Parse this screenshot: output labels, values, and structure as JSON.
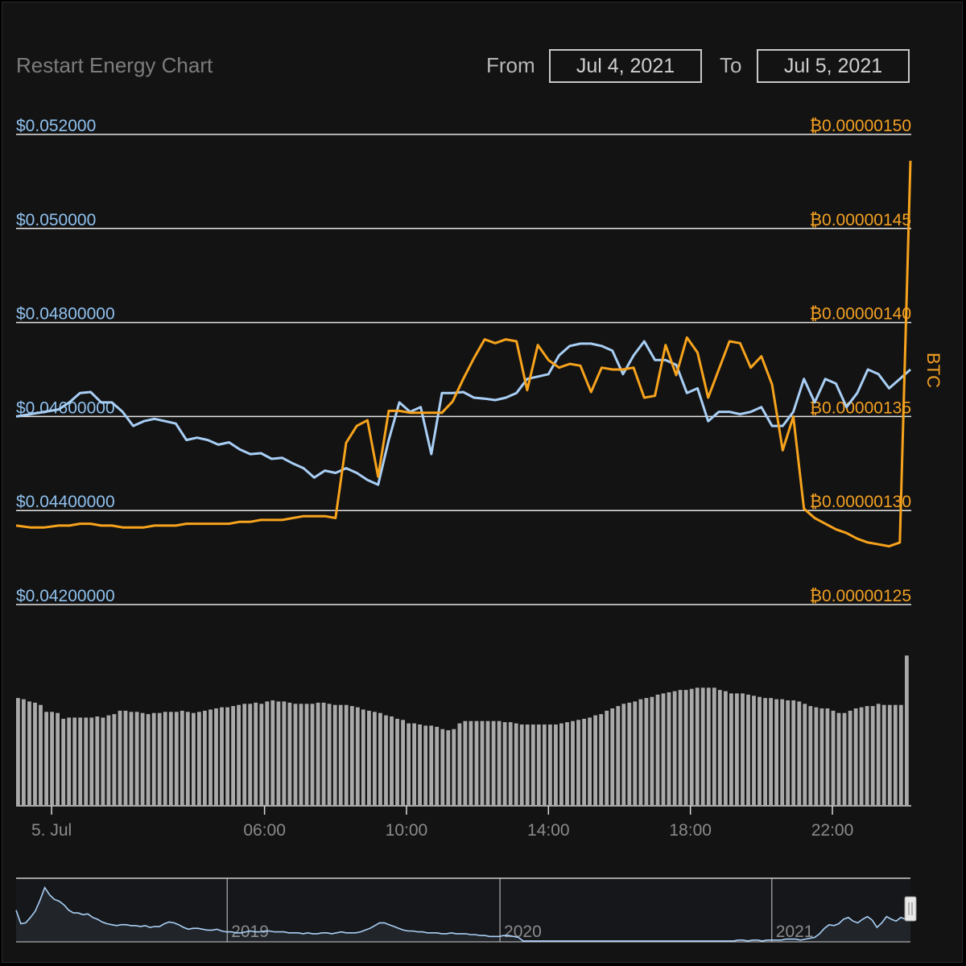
{
  "header": {
    "title": "Restart Energy Chart",
    "from_label": "From",
    "from_value": "Jul 4, 2021",
    "to_label": "To",
    "to_value": "Jul 5, 2021"
  },
  "colors": {
    "usd_line": "#a9cff5",
    "btc_line": "#f7a31c",
    "usd_axis_text": "#8fc1ee",
    "btc_axis_text": "#f3a022",
    "volume_bar": "#a9a9a9",
    "gridline": "#e6e6e6"
  },
  "chart_data": {
    "type": "line",
    "x_unit": "hours since 00:00, Jul 5",
    "usd_axis": {
      "ylim": [
        0.042,
        0.052
      ],
      "tick_values": [
        0.042,
        0.044,
        0.046,
        0.048,
        0.05,
        0.052
      ],
      "tick_labels": [
        "$0.04200000",
        "$0.04400000",
        "$0.04600000",
        "$0.04800000",
        "$0.050000",
        "$0.052000"
      ]
    },
    "btc_axis": {
      "title": "BTC",
      "ylim": [
        1.25e-06,
        1.5e-06
      ],
      "tick_values": [
        1.25e-06,
        1.3e-06,
        1.35e-06,
        1.4e-06,
        1.45e-06,
        1.5e-06
      ],
      "tick_labels": [
        "₿0.00000125",
        "₿0.00000130",
        "₿0.00000135",
        "₿0.00000140",
        "₿0.00000145",
        "₿0.00000150"
      ]
    },
    "x_ticks": [
      {
        "label": "5. Jul",
        "x": 0
      },
      {
        "label": "06:00",
        "x": 6
      },
      {
        "label": "10:00",
        "x": 10
      },
      {
        "label": "14:00",
        "x": 14
      },
      {
        "label": "18:00",
        "x": 18
      },
      {
        "label": "22:00",
        "x": 22
      }
    ],
    "x_range": [
      -1,
      24.2
    ],
    "series": [
      {
        "axis": "usd",
        "points": [
          [
            -1,
            0.046
          ],
          [
            -0.6,
            0.04605
          ],
          [
            -0.2,
            0.0461
          ],
          [
            0.2,
            0.04615
          ],
          [
            0.5,
            0.0463
          ],
          [
            0.8,
            0.0465
          ],
          [
            1.1,
            0.04652
          ],
          [
            1.4,
            0.0463
          ],
          [
            1.7,
            0.0463
          ],
          [
            2.0,
            0.0461
          ],
          [
            2.3,
            0.0458
          ],
          [
            2.6,
            0.0459
          ],
          [
            2.9,
            0.04595
          ],
          [
            3.2,
            0.0459
          ],
          [
            3.5,
            0.04585
          ],
          [
            3.8,
            0.0455
          ],
          [
            4.1,
            0.04555
          ],
          [
            4.4,
            0.0455
          ],
          [
            4.7,
            0.0454
          ],
          [
            5.0,
            0.04545
          ],
          [
            5.3,
            0.0453
          ],
          [
            5.6,
            0.0452
          ],
          [
            5.9,
            0.04522
          ],
          [
            6.2,
            0.0451
          ],
          [
            6.5,
            0.04512
          ],
          [
            6.8,
            0.045
          ],
          [
            7.1,
            0.0449
          ],
          [
            7.4,
            0.0447
          ],
          [
            7.7,
            0.04485
          ],
          [
            8.0,
            0.0448
          ],
          [
            8.3,
            0.0449
          ],
          [
            8.6,
            0.0448
          ],
          [
            8.9,
            0.04465
          ],
          [
            9.2,
            0.04455
          ],
          [
            9.5,
            0.0455
          ],
          [
            9.8,
            0.0463
          ],
          [
            10.1,
            0.0461
          ],
          [
            10.4,
            0.0462
          ],
          [
            10.7,
            0.0452
          ],
          [
            11.0,
            0.0465
          ],
          [
            11.3,
            0.0465
          ],
          [
            11.6,
            0.04652
          ],
          [
            11.9,
            0.0464
          ],
          [
            12.2,
            0.04638
          ],
          [
            12.5,
            0.04635
          ],
          [
            12.8,
            0.0464
          ],
          [
            13.1,
            0.0465
          ],
          [
            13.4,
            0.0468
          ],
          [
            13.7,
            0.04685
          ],
          [
            14.0,
            0.0469
          ],
          [
            14.3,
            0.0473
          ],
          [
            14.6,
            0.0475
          ],
          [
            14.9,
            0.04755
          ],
          [
            15.2,
            0.04755
          ],
          [
            15.5,
            0.0475
          ],
          [
            15.8,
            0.0474
          ],
          [
            16.1,
            0.0469
          ],
          [
            16.4,
            0.0473
          ],
          [
            16.7,
            0.0476
          ],
          [
            17.0,
            0.0472
          ],
          [
            17.3,
            0.0472
          ],
          [
            17.6,
            0.0471
          ],
          [
            17.9,
            0.0465
          ],
          [
            18.2,
            0.0466
          ],
          [
            18.5,
            0.0459
          ],
          [
            18.8,
            0.0461
          ],
          [
            19.1,
            0.0461
          ],
          [
            19.4,
            0.04605
          ],
          [
            19.7,
            0.0461
          ],
          [
            20.0,
            0.0462
          ],
          [
            20.3,
            0.0458
          ],
          [
            20.6,
            0.0458
          ],
          [
            20.9,
            0.0461
          ],
          [
            21.2,
            0.0468
          ],
          [
            21.5,
            0.0463
          ],
          [
            21.8,
            0.0468
          ],
          [
            22.1,
            0.0467
          ],
          [
            22.4,
            0.0462
          ],
          [
            22.7,
            0.0465
          ],
          [
            23.0,
            0.047
          ],
          [
            23.3,
            0.0469
          ],
          [
            23.6,
            0.0466
          ],
          [
            23.9,
            0.0468
          ],
          [
            24.2,
            0.047
          ]
        ]
      },
      {
        "axis": "btc",
        "points": [
          [
            -1,
            1.292e-06
          ],
          [
            -0.6,
            1.291e-06
          ],
          [
            -0.2,
            1.291e-06
          ],
          [
            0.2,
            1.292e-06
          ],
          [
            0.5,
            1.292e-06
          ],
          [
            0.8,
            1.293e-06
          ],
          [
            1.1,
            1.293e-06
          ],
          [
            1.4,
            1.292e-06
          ],
          [
            1.7,
            1.292e-06
          ],
          [
            2.0,
            1.291e-06
          ],
          [
            2.3,
            1.291e-06
          ],
          [
            2.6,
            1.291e-06
          ],
          [
            2.9,
            1.292e-06
          ],
          [
            3.2,
            1.292e-06
          ],
          [
            3.5,
            1.292e-06
          ],
          [
            3.8,
            1.293e-06
          ],
          [
            4.1,
            1.293e-06
          ],
          [
            4.4,
            1.293e-06
          ],
          [
            4.7,
            1.293e-06
          ],
          [
            5.0,
            1.293e-06
          ],
          [
            5.3,
            1.294e-06
          ],
          [
            5.6,
            1.294e-06
          ],
          [
            5.9,
            1.295e-06
          ],
          [
            6.2,
            1.295e-06
          ],
          [
            6.5,
            1.295e-06
          ],
          [
            6.8,
            1.296e-06
          ],
          [
            7.1,
            1.297e-06
          ],
          [
            7.4,
            1.297e-06
          ],
          [
            7.7,
            1.297e-06
          ],
          [
            8.0,
            1.296e-06
          ],
          [
            8.3,
            1.336e-06
          ],
          [
            8.6,
            1.345e-06
          ],
          [
            8.9,
            1.348e-06
          ],
          [
            9.2,
            1.318e-06
          ],
          [
            9.5,
            1.353e-06
          ],
          [
            9.8,
            1.353e-06
          ],
          [
            10.1,
            1.352e-06
          ],
          [
            10.4,
            1.352e-06
          ],
          [
            10.7,
            1.352e-06
          ],
          [
            11.0,
            1.352e-06
          ],
          [
            11.3,
            1.358e-06
          ],
          [
            11.6,
            1.37e-06
          ],
          [
            11.9,
            1.381e-06
          ],
          [
            12.2,
            1.391e-06
          ],
          [
            12.5,
            1.389e-06
          ],
          [
            12.8,
            1.391e-06
          ],
          [
            13.1,
            1.39e-06
          ],
          [
            13.4,
            1.364e-06
          ],
          [
            13.7,
            1.388e-06
          ],
          [
            14.0,
            1.38e-06
          ],
          [
            14.3,
            1.376e-06
          ],
          [
            14.6,
            1.378e-06
          ],
          [
            14.9,
            1.377e-06
          ],
          [
            15.2,
            1.363e-06
          ],
          [
            15.5,
            1.376e-06
          ],
          [
            15.8,
            1.375e-06
          ],
          [
            16.1,
            1.375e-06
          ],
          [
            16.4,
            1.376e-06
          ],
          [
            16.7,
            1.36e-06
          ],
          [
            17.0,
            1.361e-06
          ],
          [
            17.3,
            1.388e-06
          ],
          [
            17.6,
            1.372e-06
          ],
          [
            17.9,
            1.392e-06
          ],
          [
            18.2,
            1.384e-06
          ],
          [
            18.5,
            1.36e-06
          ],
          [
            18.8,
            1.375e-06
          ],
          [
            19.1,
            1.39e-06
          ],
          [
            19.4,
            1.389e-06
          ],
          [
            19.7,
            1.376e-06
          ],
          [
            20.0,
            1.382e-06
          ],
          [
            20.3,
            1.367e-06
          ],
          [
            20.6,
            1.332e-06
          ],
          [
            20.9,
            1.35e-06
          ],
          [
            21.2,
            1.301e-06
          ],
          [
            21.5,
            1.296e-06
          ],
          [
            21.8,
            1.293e-06
          ],
          [
            22.1,
            1.29e-06
          ],
          [
            22.4,
            1.288e-06
          ],
          [
            22.7,
            1.285e-06
          ],
          [
            23.0,
            1.283e-06
          ],
          [
            23.3,
            1.282e-06
          ],
          [
            23.6,
            1.281e-06
          ],
          [
            23.9,
            1.283e-06
          ],
          [
            24.2,
            1.486e-06
          ]
        ]
      }
    ],
    "volume": {
      "values": [
        93,
        92,
        90,
        89,
        87,
        81,
        81,
        80,
        75,
        76,
        76,
        76,
        76,
        76,
        77,
        76,
        78,
        79,
        82,
        82,
        81,
        81,
        80,
        79,
        80,
        80,
        81,
        81,
        81,
        82,
        81,
        80,
        81,
        82,
        83,
        84,
        85,
        85,
        86,
        87,
        88,
        88,
        89,
        88,
        90,
        91,
        90,
        90,
        89,
        88,
        88,
        88,
        88,
        89,
        89,
        88,
        87,
        87,
        87,
        86,
        85,
        83,
        82,
        81,
        80,
        78,
        77,
        75,
        74,
        71,
        71,
        70,
        69,
        69,
        68,
        66,
        65,
        66,
        71,
        73,
        73,
        73,
        73,
        73,
        73,
        73,
        72,
        72,
        71,
        70,
        70,
        70,
        70,
        70,
        70,
        70,
        71,
        72,
        73,
        74,
        75,
        76,
        78,
        79,
        82,
        84,
        86,
        88,
        89,
        90,
        92,
        93,
        94,
        96,
        97,
        98,
        99,
        100,
        100,
        101,
        102,
        102,
        102,
        102,
        100,
        99,
        97,
        97,
        97,
        96,
        95,
        94,
        93,
        93,
        92,
        92,
        91,
        91,
        90,
        88,
        86,
        85,
        84,
        84,
        82,
        80,
        80,
        82,
        84,
        85,
        86,
        86,
        88,
        87,
        87,
        87,
        87,
        130
      ],
      "ylim": [
        0,
        140
      ]
    },
    "navigator": {
      "year_labels": [
        {
          "label": "2019",
          "x": 0.236
        },
        {
          "label": "2020",
          "x": 0.541
        },
        {
          "label": "2021",
          "x": 0.845
        }
      ],
      "values": [
        0.05,
        0.035,
        0.036,
        0.042,
        0.049,
        0.061,
        0.075,
        0.067,
        0.062,
        0.06,
        0.056,
        0.05,
        0.047,
        0.047,
        0.045,
        0.046,
        0.042,
        0.04,
        0.037,
        0.035,
        0.034,
        0.033,
        0.034,
        0.034,
        0.033,
        0.033,
        0.032,
        0.033,
        0.031,
        0.032,
        0.032,
        0.035,
        0.037,
        0.036,
        0.034,
        0.031,
        0.029,
        0.03,
        0.03,
        0.029,
        0.028,
        0.028,
        0.029,
        0.027,
        0.026,
        0.026,
        0.025,
        0.025,
        0.026,
        0.027,
        0.026,
        0.026,
        0.027,
        0.027,
        0.026,
        0.026,
        0.026,
        0.025,
        0.025,
        0.025,
        0.024,
        0.025,
        0.024,
        0.024,
        0.025,
        0.025,
        0.024,
        0.025,
        0.026,
        0.025,
        0.025,
        0.025,
        0.026,
        0.028,
        0.03,
        0.033,
        0.036,
        0.036,
        0.034,
        0.032,
        0.03,
        0.028,
        0.027,
        0.027,
        0.026,
        0.026,
        0.025,
        0.025,
        0.025,
        0.024,
        0.024,
        0.025,
        0.024,
        0.024,
        0.024,
        0.023,
        0.023,
        0.022,
        0.022,
        0.021,
        0.021,
        0.021,
        0.022,
        0.022,
        0.021,
        0.02,
        0.016,
        0.016,
        0.016,
        0.016,
        0.016,
        0.016,
        0.016,
        0.016,
        0.016,
        0.016,
        0.016,
        0.016,
        0.016,
        0.016,
        0.016,
        0.016,
        0.016,
        0.016,
        0.016,
        0.016,
        0.016,
        0.016,
        0.016,
        0.016,
        0.016,
        0.016,
        0.016,
        0.016,
        0.016,
        0.016,
        0.016,
        0.016,
        0.016,
        0.016,
        0.016,
        0.016,
        0.016,
        0.016,
        0.016,
        0.016,
        0.016,
        0.016,
        0.016,
        0.016,
        0.016,
        0.017,
        0.017,
        0.016,
        0.017,
        0.017,
        0.016,
        0.017,
        0.017,
        0.017,
        0.017,
        0.018,
        0.018,
        0.018,
        0.017,
        0.018,
        0.019,
        0.02,
        0.024,
        0.03,
        0.034,
        0.033,
        0.035,
        0.04,
        0.042,
        0.038,
        0.036,
        0.04,
        0.043,
        0.039,
        0.031,
        0.036,
        0.043,
        0.04,
        0.038,
        0.042,
        0.04,
        0.041
      ],
      "ylim": [
        0.015,
        0.08
      ]
    }
  }
}
